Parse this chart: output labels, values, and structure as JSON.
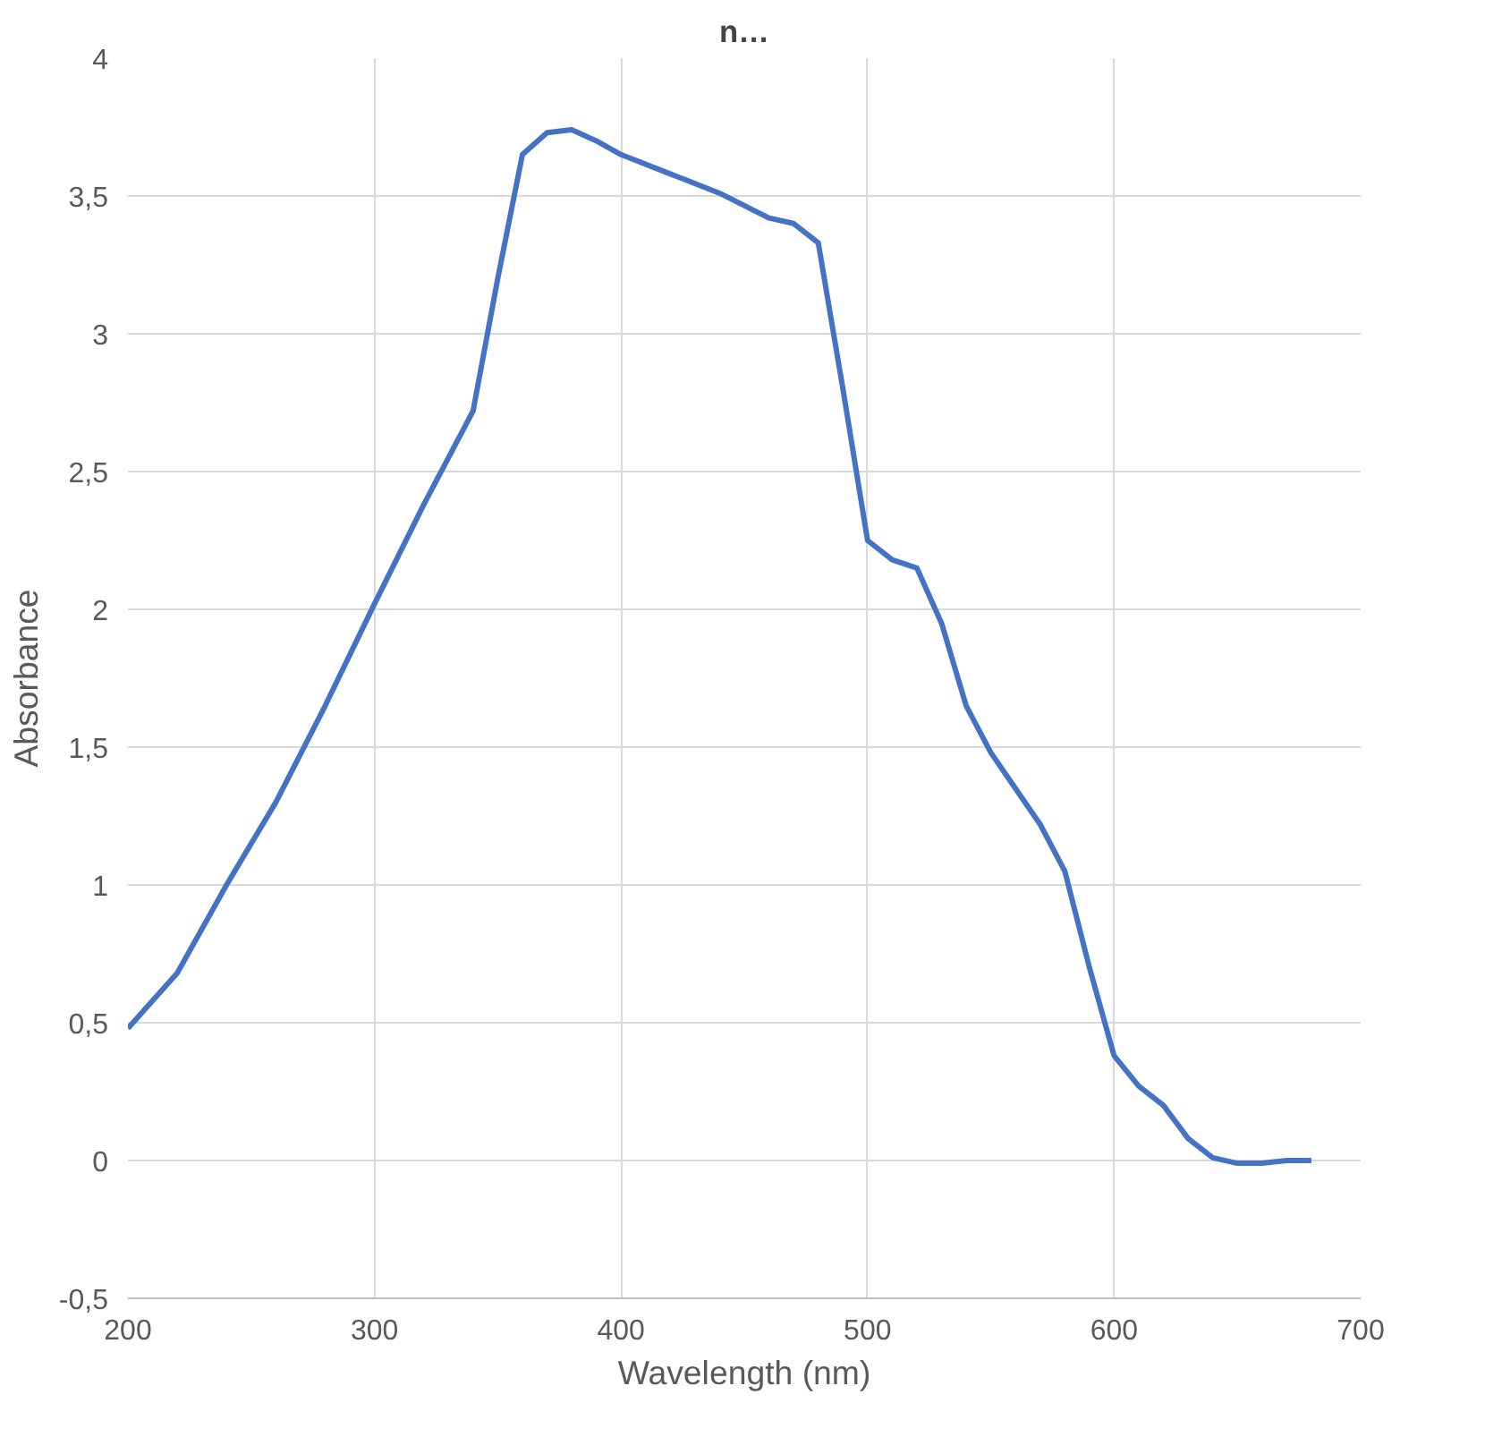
{
  "chart_data": {
    "type": "line",
    "title": "n…",
    "xlabel": "Wavelength (nm)",
    "ylabel": "Absorbance",
    "xlim": [
      200,
      700
    ],
    "ylim": [
      -0.5,
      4
    ],
    "xticks": [
      200,
      300,
      400,
      500,
      600,
      700
    ],
    "yticks": [
      {
        "value": -0.5,
        "label": "-0,5"
      },
      0,
      {
        "value": 0.5,
        "label": "0,5"
      },
      1,
      {
        "value": 1.5,
        "label": "1,5"
      },
      2,
      {
        "value": 2.5,
        "label": "2,5"
      },
      3,
      {
        "value": 3.5,
        "label": "3,5"
      },
      4
    ],
    "grid": true,
    "marker": "none",
    "line_style": "solid",
    "series": [
      {
        "color": "#4472c4",
        "x": [
          200,
          220,
          240,
          260,
          280,
          300,
          320,
          340,
          350,
          360,
          370,
          380,
          390,
          400,
          420,
          440,
          460,
          470,
          480,
          490,
          500,
          510,
          520,
          530,
          540,
          550,
          560,
          570,
          580,
          590,
          600,
          610,
          620,
          630,
          640,
          650,
          660,
          670,
          680
        ],
        "values": [
          0.48,
          0.68,
          1.0,
          1.3,
          1.65,
          2.02,
          2.38,
          2.72,
          3.2,
          3.65,
          3.73,
          3.74,
          3.7,
          3.65,
          3.58,
          3.51,
          3.42,
          3.4,
          3.33,
          2.8,
          2.25,
          2.18,
          2.15,
          1.95,
          1.65,
          1.48,
          1.35,
          1.22,
          1.05,
          0.7,
          0.38,
          0.27,
          0.2,
          0.08,
          0.01,
          -0.01,
          -0.01,
          0.0,
          0.0
        ]
      }
    ]
  }
}
